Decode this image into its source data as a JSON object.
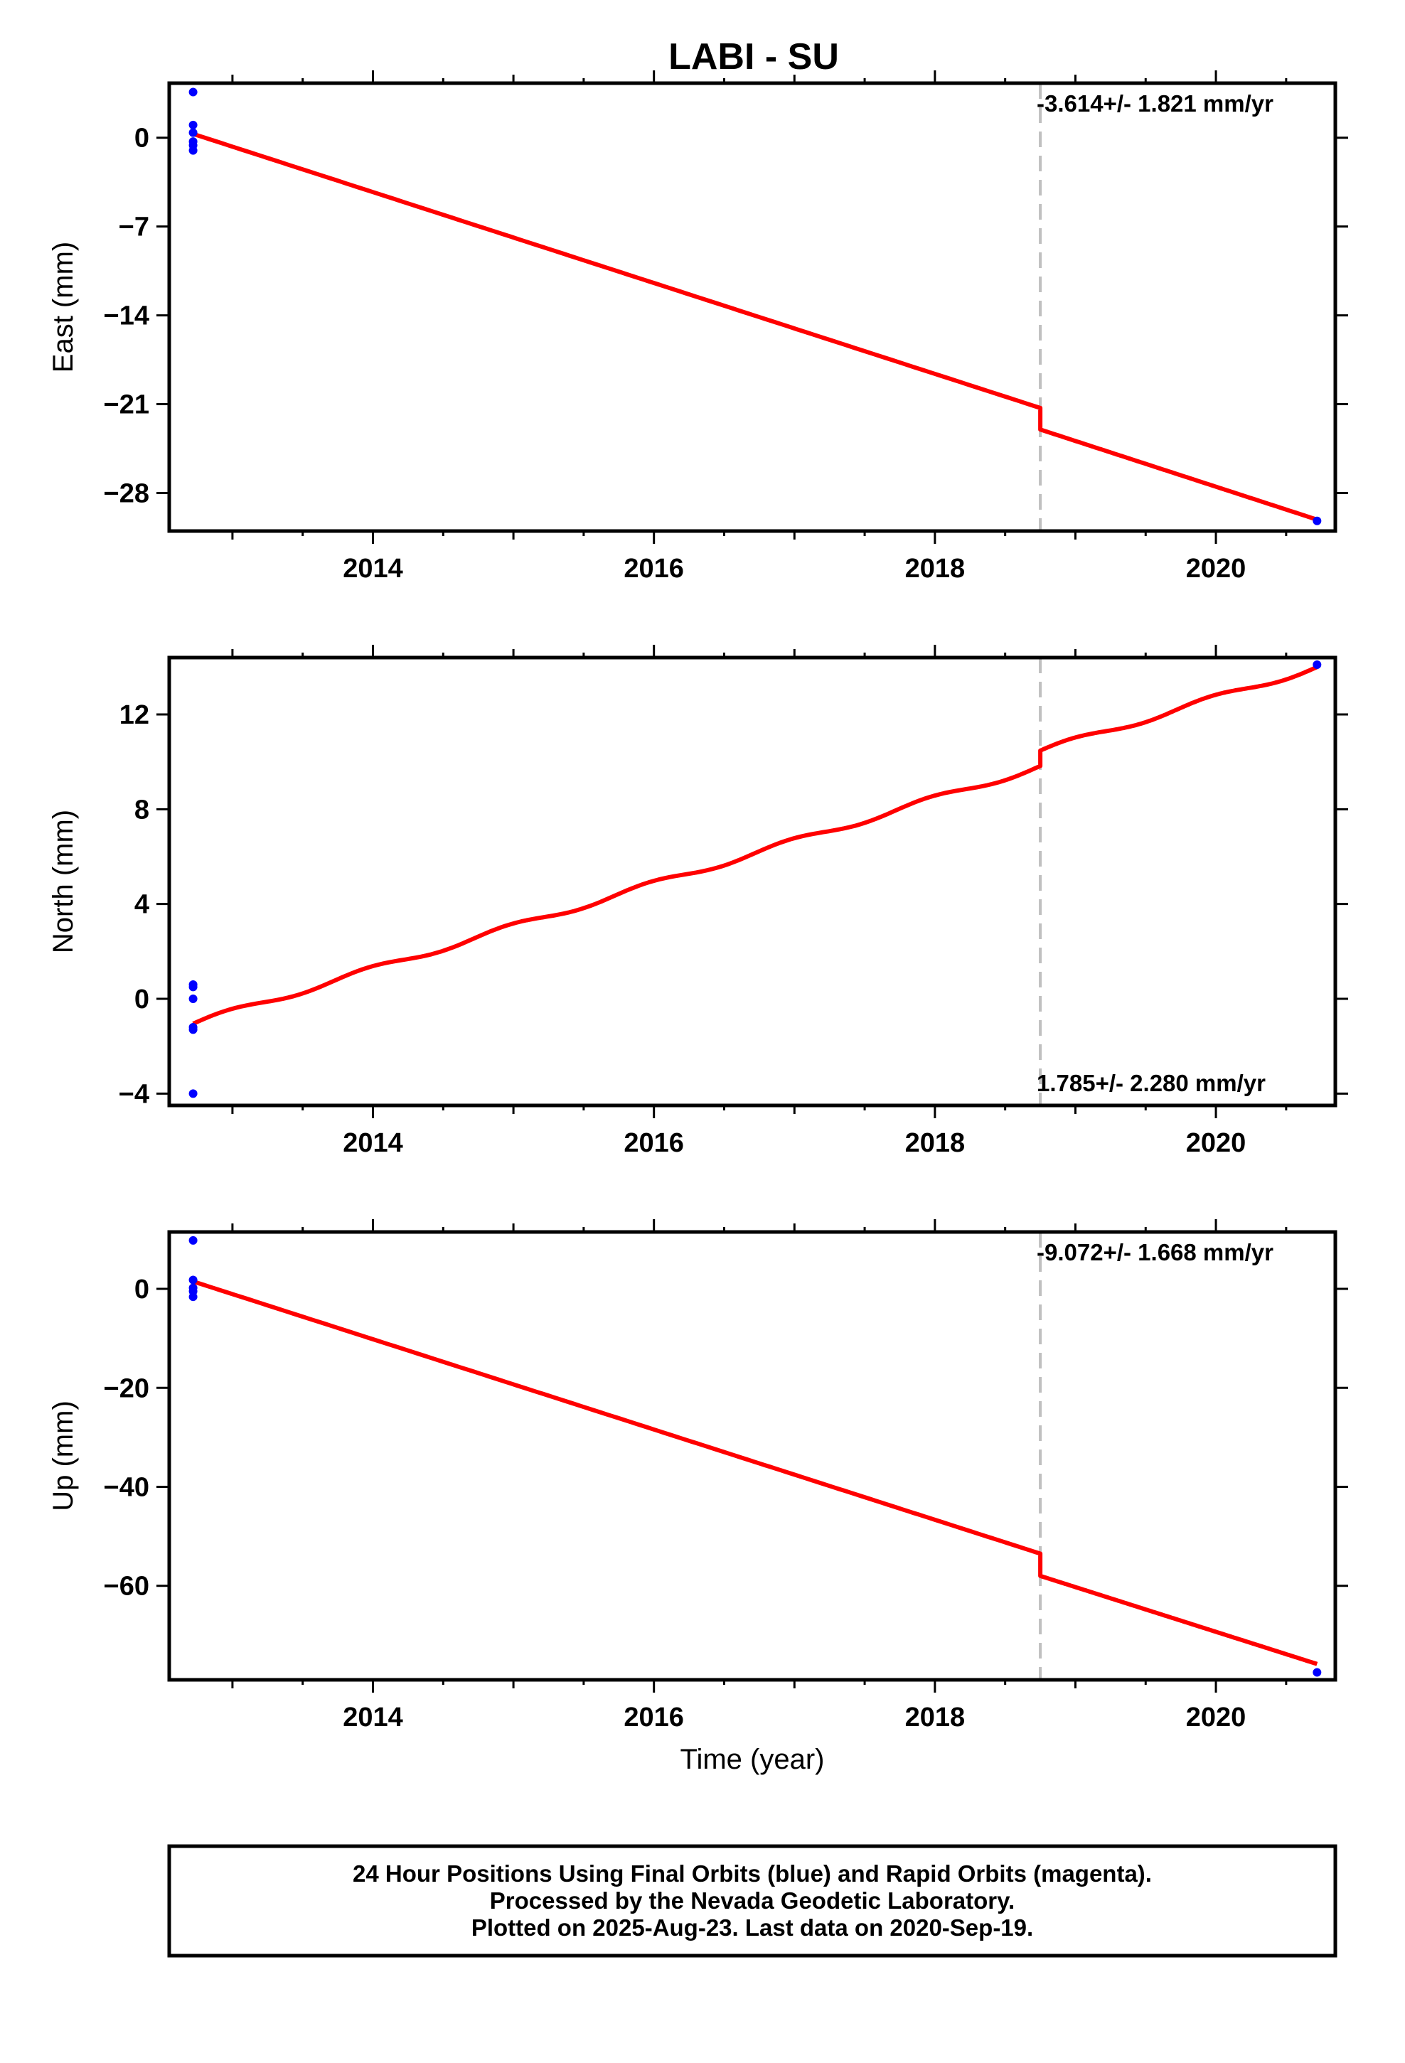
{
  "title": "LABI - SU",
  "colors": {
    "fit": "#ff0000",
    "final_orbits": "#0000ff",
    "offset_line": "#c0c0c0"
  },
  "chart_data": [
    {
      "type": "line",
      "ylabel": "East (mm)",
      "xlabel": "",
      "rate_label": "-3.614+/- 1.821 mm/yr",
      "xlim": [
        2012.55,
        2020.85
      ],
      "ylim": [
        -31,
        4.3
      ],
      "xticks": [
        2014,
        2016,
        2018,
        2020
      ],
      "yticks": [
        0,
        -7,
        -14,
        -21,
        -28
      ],
      "ytick_labels": [
        "0",
        "−7",
        "−14",
        "−21",
        "−28"
      ],
      "offset_epoch": 2018.75,
      "fit_segments": [
        {
          "x": [
            2012.72,
            2018.75
          ],
          "y": [
            0.3,
            -21.3
          ],
          "wiggle": 0
        },
        {
          "x": [
            2018.75,
            2020.72
          ],
          "y": [
            -23.0,
            -30.1
          ],
          "wiggle": 0
        }
      ],
      "points": {
        "x": [
          2012.72,
          2012.72,
          2012.72,
          2012.72,
          2012.72,
          2012.72,
          2020.72
        ],
        "y": [
          3.6,
          1.0,
          0.4,
          -0.3,
          -0.6,
          -1.0,
          -30.2
        ]
      }
    },
    {
      "type": "line",
      "ylabel": "North (mm)",
      "xlabel": "",
      "rate_label": "1.785+/- 2.280 mm/yr",
      "xlim": [
        2012.55,
        2020.85
      ],
      "ylim": [
        -4.5,
        14.4
      ],
      "xticks": [
        2014,
        2016,
        2018,
        2020
      ],
      "yticks": [
        12,
        8,
        4,
        0,
        -4
      ],
      "ytick_labels": [
        "12",
        "8",
        "4",
        "0",
        "−4"
      ],
      "offset_epoch": 2018.75,
      "fit_segments": [
        {
          "x": [
            2012.72,
            2018.75
          ],
          "y": [
            -1.05,
            9.8
          ],
          "wiggle": 0.13
        },
        {
          "x": [
            2018.75,
            2020.72
          ],
          "y": [
            10.45,
            14.0
          ],
          "wiggle": 0.13
        }
      ],
      "points": {
        "x": [
          2012.72,
          2012.72,
          2012.72,
          2012.72,
          2012.72,
          2012.72,
          2020.72
        ],
        "y": [
          0.6,
          0.5,
          0.0,
          -1.2,
          -1.3,
          -4.0,
          14.1
        ]
      }
    },
    {
      "type": "line",
      "ylabel": "Up (mm)",
      "xlabel": "Time (year)",
      "rate_label": "-9.072+/- 1.668 mm/yr",
      "xlim": [
        2012.55,
        2020.85
      ],
      "ylim": [
        -79,
        11.5
      ],
      "xticks": [
        2014,
        2016,
        2018,
        2020
      ],
      "yticks": [
        0,
        -20,
        -40,
        -60
      ],
      "ytick_labels": [
        "0",
        "−20",
        "−40",
        "−60"
      ],
      "offset_epoch": 2018.75,
      "fit_segments": [
        {
          "x": [
            2012.72,
            2018.75
          ],
          "y": [
            1.5,
            -53.5
          ],
          "wiggle": 0
        },
        {
          "x": [
            2018.75,
            2020.72
          ],
          "y": [
            -58.0,
            -75.8
          ],
          "wiggle": 0
        }
      ],
      "points": {
        "x": [
          2012.72,
          2012.72,
          2012.72,
          2012.72,
          2012.72,
          2020.72
        ],
        "y": [
          9.8,
          1.8,
          0.2,
          -0.5,
          -1.6,
          -77.5
        ]
      }
    }
  ],
  "footer": {
    "line1": "24 Hour Positions Using Final Orbits (blue) and Rapid Orbits (magenta).",
    "line2": "Processed by the Nevada Geodetic Laboratory.",
    "line3": "Plotted on 2025-Aug-23. Last data on 2020-Sep-19."
  }
}
